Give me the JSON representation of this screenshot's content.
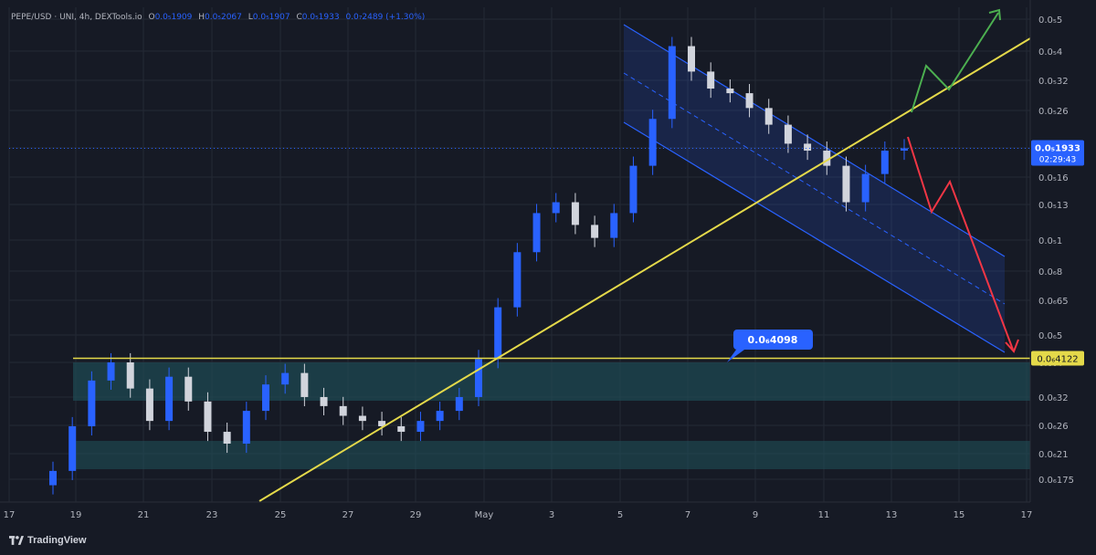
{
  "header": {
    "symbol": "PEPE/USD · UNI, 4h, DEXTools.io",
    "o_label": "O",
    "o": "0.0₅1909",
    "h_label": "H",
    "h": "0.0₅2067",
    "l_label": "L",
    "l": "0.0₅1907",
    "c_label": "C",
    "c": "0.0₅1933",
    "change": "0.0₇2489 (+1.30%)"
  },
  "brand": "TradingView",
  "colors": {
    "background": "#161a25",
    "grid": "#242935",
    "up": "#2962ff",
    "down": "#d1d4dc",
    "trendline": "#e4d94a",
    "channel": "#2962ff",
    "arrow_up": "#4caf50",
    "arrow_down": "#f23645"
  },
  "price_axis": {
    "ticks": [
      "0.0₅5",
      "0.0₅4",
      "0.0₅32",
      "0.0₅26",
      "0.0₅2",
      "0.0₅16",
      "0.0₅13",
      "0.0₅1",
      "0.0₆8",
      "0.0₆65",
      "0.0₆5",
      "0.0₆4",
      "0.0₆32",
      "0.0₆26",
      "0.0₆21",
      "0.0₆175"
    ],
    "current_price": "0.0₅1933",
    "countdown": "02:29:43",
    "level_label": "0.0₆4122"
  },
  "time_axis": {
    "ticks": [
      "17",
      "19",
      "21",
      "23",
      "25",
      "27",
      "29",
      "May",
      "3",
      "5",
      "7",
      "9",
      "11",
      "13",
      "15",
      "17"
    ]
  },
  "annotations": {
    "callout": "0.0₆4098"
  },
  "chart_data": {
    "type": "candlestick",
    "scale": "log",
    "timeframe": "4h",
    "y_range": [
      1.6e-07,
      5.1e-06
    ],
    "x_range": [
      "Apr 17",
      "May 17"
    ],
    "last_price": 1.933e-06,
    "horizontal_level": 4.122e-07,
    "callout_value": 4.098e-07,
    "ohlc_last": {
      "open": 1.909e-06,
      "high": 2.067e-06,
      "low": 1.907e-06,
      "close": 1.933e-06
    },
    "closes": [
      1.8e-07,
      2.5e-07,
      3.5e-07,
      4e-07,
      3.3e-07,
      2.6e-07,
      3.6e-07,
      3e-07,
      2.4e-07,
      2.2e-07,
      2.8e-07,
      3.4e-07,
      3.7e-07,
      3.1e-07,
      2.9e-07,
      2.7e-07,
      2.6e-07,
      2.5e-07,
      2.4e-07,
      2.6e-07,
      2.8e-07,
      3.1e-07,
      4.1e-07,
      6e-07,
      9e-07,
      1.2e-06,
      1.3e-06,
      1.1e-06,
      1e-06,
      1.2e-06,
      1.7e-06,
      2.4e-06,
      4.1e-06,
      3.4e-06,
      3e-06,
      2.9e-06,
      2.6e-06,
      2.3e-06,
      2e-06,
      1.9e-06,
      1.7e-06,
      1.3e-06,
      1.6e-06,
      1.9e-06,
      1.933e-06
    ]
  }
}
